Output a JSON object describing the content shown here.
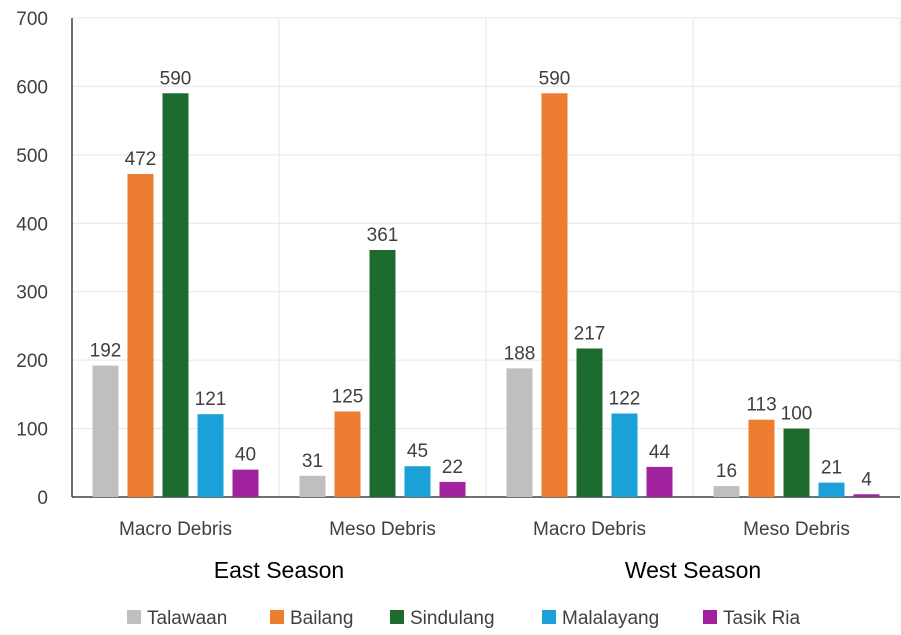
{
  "chart_data": {
    "type": "bar",
    "ylim": [
      0,
      700
    ],
    "yticks": [
      0,
      100,
      200,
      300,
      400,
      500,
      600,
      700
    ],
    "grid": true,
    "legend_position": "bottom",
    "groups": [
      {
        "label": "East Season",
        "categories": [
          "Macro Debris",
          "Meso Debris"
        ]
      },
      {
        "label": "West Season",
        "categories": [
          "Macro Debris",
          "Meso Debris"
        ]
      }
    ],
    "categories": [
      "Macro Debris",
      "Meso Debris",
      "Macro Debris",
      "Meso Debris"
    ],
    "series": [
      {
        "name": "Talawaan",
        "color": "#bfbfbf",
        "values": [
          192,
          31,
          188,
          16
        ]
      },
      {
        "name": "Bailang",
        "color": "#ed7d31",
        "values": [
          472,
          125,
          590,
          113
        ]
      },
      {
        "name": "Sindulang",
        "color": "#1e6b30",
        "values": [
          590,
          361,
          217,
          100
        ]
      },
      {
        "name": "Malalayang",
        "color": "#1ca0d8",
        "values": [
          121,
          45,
          122,
          21
        ]
      },
      {
        "name": "Tasik Ria",
        "color": "#a0229c",
        "values": [
          40,
          22,
          44,
          4
        ]
      }
    ]
  }
}
